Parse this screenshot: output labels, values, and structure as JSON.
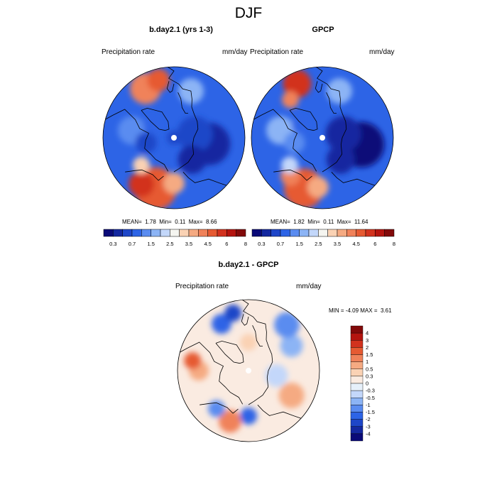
{
  "page": {
    "title": "DJF"
  },
  "panels": [
    {
      "title": "b.day2.1 (yrs 1-3)",
      "left_label": "Precipitation rate",
      "right_label": "mm/day",
      "stats": {
        "mean_label": "MEAN=",
        "mean": "1.78",
        "min_label": "Min=",
        "min": "0.11",
        "max_label": "Max=",
        "max": "8.66"
      }
    },
    {
      "title": "GPCP",
      "left_label": "Precipitation rate",
      "right_label": "mm/day",
      "stats": {
        "mean_label": "MEAN=",
        "mean": "1.82",
        "min_label": "Min=",
        "min": "0.11",
        "max_label": "Max=",
        "max": "11.64"
      }
    },
    {
      "title": "b.day2.1 - GPCP",
      "left_label": "Precipitation rate",
      "right_label": "mm/day",
      "stats": {
        "min_label": "MIN =",
        "min": "-4.09",
        "max_label": "MAX =",
        "max": "3.61"
      }
    }
  ],
  "colorbars": {
    "absolute": {
      "colors": [
        "#0a0a78",
        "#1428a0",
        "#1e46c8",
        "#2d64e6",
        "#5a8cf0",
        "#8cb4f5",
        "#c3d7fa",
        "#f5f5f0",
        "#fad2b4",
        "#f5aa82",
        "#f0825a",
        "#e65a32",
        "#d2321e",
        "#b4140f",
        "#820a0a"
      ],
      "tick_labels": [
        "0.3",
        "0.7",
        "1.5",
        "2.5",
        "3.5",
        "4.5",
        "6",
        "8"
      ]
    },
    "difference": {
      "colors": [
        "#820a0a",
        "#b4140f",
        "#d2321e",
        "#e65a32",
        "#f0825a",
        "#f5aa82",
        "#fad2b4",
        "#faebe1",
        "#e6f0fa",
        "#c3d7fa",
        "#8cb4f5",
        "#5a8cf0",
        "#2d64e6",
        "#1e46c8",
        "#1428a0",
        "#0a0a78"
      ],
      "tick_labels": [
        "4",
        "3",
        "2",
        "1.5",
        "1",
        "0.5",
        "0.3",
        "0",
        "-0.3",
        "-0.5",
        "-1",
        "-1.5",
        "-2",
        "-3",
        "-4"
      ]
    }
  },
  "map_fields": {
    "model": {
      "background": "#2d64e6",
      "patches": [
        {
          "lon": 200,
          "lat": 52,
          "size": 0.3,
          "color": "#e65a32"
        },
        {
          "lon": 215,
          "lat": 50,
          "size": 0.18,
          "color": "#d2321e"
        },
        {
          "lon": 180,
          "lat": 58,
          "size": 0.15,
          "color": "#f5aa82"
        },
        {
          "lon": 230,
          "lat": 60,
          "size": 0.12,
          "color": "#fad2b4"
        },
        {
          "lon": 330,
          "lat": 50,
          "size": 0.22,
          "color": "#f0825a"
        },
        {
          "lon": 345,
          "lat": 48,
          "size": 0.16,
          "color": "#e65a32"
        },
        {
          "lon": 20,
          "lat": 55,
          "size": 0.18,
          "color": "#8cb4f5"
        },
        {
          "lon": 100,
          "lat": 65,
          "size": 0.3,
          "color": "#1428a0"
        },
        {
          "lon": 80,
          "lat": 75,
          "size": 0.25,
          "color": "#1e46c8"
        },
        {
          "lon": 140,
          "lat": 70,
          "size": 0.2,
          "color": "#1428a0"
        },
        {
          "lon": 0,
          "lat": 90,
          "size": 0.1,
          "color": "#1e46c8"
        },
        {
          "lon": 280,
          "lat": 60,
          "size": 0.2,
          "color": "#5a8cf0"
        },
        {
          "lon": 260,
          "lat": 70,
          "size": 0.15,
          "color": "#1e46c8"
        },
        {
          "lon": 300,
          "lat": 72,
          "size": 0.12,
          "color": "#2d64e6"
        }
      ]
    },
    "obs": {
      "background": "#2d64e6",
      "patches": [
        {
          "lon": 200,
          "lat": 52,
          "size": 0.28,
          "color": "#e65a32"
        },
        {
          "lon": 185,
          "lat": 55,
          "size": 0.15,
          "color": "#f5aa82"
        },
        {
          "lon": 220,
          "lat": 55,
          "size": 0.14,
          "color": "#f0825a"
        },
        {
          "lon": 335,
          "lat": 48,
          "size": 0.2,
          "color": "#d2321e"
        },
        {
          "lon": 320,
          "lat": 55,
          "size": 0.12,
          "color": "#f0825a"
        },
        {
          "lon": 20,
          "lat": 55,
          "size": 0.18,
          "color": "#8cb4f5"
        },
        {
          "lon": 100,
          "lat": 62,
          "size": 0.32,
          "color": "#0a0a78"
        },
        {
          "lon": 80,
          "lat": 75,
          "size": 0.25,
          "color": "#1428a0"
        },
        {
          "lon": 140,
          "lat": 70,
          "size": 0.2,
          "color": "#1428a0"
        },
        {
          "lon": 280,
          "lat": 60,
          "size": 0.2,
          "color": "#8cb4f5"
        },
        {
          "lon": 260,
          "lat": 70,
          "size": 0.15,
          "color": "#5a8cf0"
        },
        {
          "lon": 300,
          "lat": 72,
          "size": 0.12,
          "color": "#2d64e6"
        },
        {
          "lon": 230,
          "lat": 60,
          "size": 0.12,
          "color": "#c3d7fa"
        }
      ]
    },
    "diff": {
      "background": "#faebe1",
      "patches": [
        {
          "lon": 330,
          "lat": 52,
          "size": 0.14,
          "color": "#2d64e6"
        },
        {
          "lon": 345,
          "lat": 48,
          "size": 0.12,
          "color": "#1e46c8"
        },
        {
          "lon": 200,
          "lat": 52,
          "size": 0.16,
          "color": "#f0825a"
        },
        {
          "lon": 220,
          "lat": 55,
          "size": 0.12,
          "color": "#5a8cf0"
        },
        {
          "lon": 180,
          "lat": 58,
          "size": 0.12,
          "color": "#2d64e6"
        },
        {
          "lon": 60,
          "lat": 55,
          "size": 0.16,
          "color": "#8cb4f5"
        },
        {
          "lon": 40,
          "lat": 48,
          "size": 0.18,
          "color": "#5a8cf0"
        },
        {
          "lon": 120,
          "lat": 55,
          "size": 0.18,
          "color": "#f5aa82"
        },
        {
          "lon": 270,
          "lat": 55,
          "size": 0.14,
          "color": "#f5aa82"
        },
        {
          "lon": 280,
          "lat": 50,
          "size": 0.12,
          "color": "#e65a32"
        },
        {
          "lon": 100,
          "lat": 70,
          "size": 0.16,
          "color": "#c3d7fa"
        },
        {
          "lon": 0,
          "lat": 70,
          "size": 0.12,
          "color": "#fad2b4"
        }
      ]
    }
  }
}
